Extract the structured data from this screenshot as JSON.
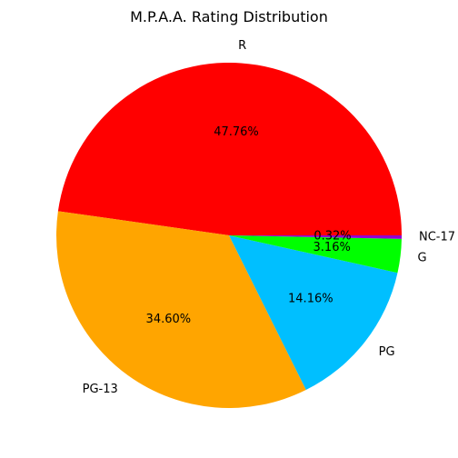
{
  "chart_data": {
    "type": "pie",
    "title": "M.P.A.A. Rating Distribution",
    "labels": [
      "R",
      "PG-13",
      "PG",
      "G",
      "NC-17"
    ],
    "values": [
      47.76,
      34.6,
      14.16,
      3.16,
      0.32
    ],
    "percent_labels": [
      "47.76%",
      "34.60%",
      "14.16%",
      "3.16%",
      "0.32%"
    ],
    "colors": [
      "#ff0000",
      "#ffa500",
      "#00bfff",
      "#00ff00",
      "#9400d3"
    ],
    "start_angle_deg": 0,
    "direction": "counterclockwise",
    "legend": "none"
  }
}
